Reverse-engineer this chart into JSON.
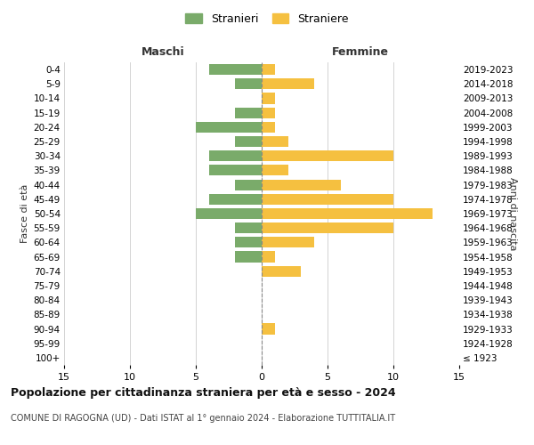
{
  "age_groups": [
    "100+",
    "95-99",
    "90-94",
    "85-89",
    "80-84",
    "75-79",
    "70-74",
    "65-69",
    "60-64",
    "55-59",
    "50-54",
    "45-49",
    "40-44",
    "35-39",
    "30-34",
    "25-29",
    "20-24",
    "15-19",
    "10-14",
    "5-9",
    "0-4"
  ],
  "birth_years": [
    "≤ 1923",
    "1924-1928",
    "1929-1933",
    "1934-1938",
    "1939-1943",
    "1944-1948",
    "1949-1953",
    "1954-1958",
    "1959-1963",
    "1964-1968",
    "1969-1973",
    "1974-1978",
    "1979-1983",
    "1984-1988",
    "1989-1993",
    "1994-1998",
    "1999-2003",
    "2004-2008",
    "2009-2013",
    "2014-2018",
    "2019-2023"
  ],
  "maschi": [
    0,
    0,
    0,
    0,
    0,
    0,
    0,
    2,
    2,
    2,
    5,
    4,
    2,
    4,
    4,
    2,
    5,
    2,
    0,
    2,
    4
  ],
  "femmine": [
    0,
    0,
    1,
    0,
    0,
    0,
    3,
    1,
    4,
    10,
    13,
    10,
    6,
    2,
    10,
    2,
    1,
    1,
    1,
    4,
    1
  ],
  "color_maschi": "#7aab6a",
  "color_femmine": "#f5c040",
  "title": "Popolazione per cittadinanza straniera per età e sesso - 2024",
  "subtitle": "COMUNE DI RAGOGNA (UD) - Dati ISTAT al 1° gennaio 2024 - Elaborazione TUTTITALIA.IT",
  "label_maschi": "Maschi",
  "label_femmine": "Femmine",
  "ylabel_left": "Fasce di età",
  "ylabel_right": "Anni di nascita",
  "legend_maschi": "Stranieri",
  "legend_femmine": "Straniere",
  "xlim": 15,
  "background_color": "#ffffff",
  "grid_color": "#cccccc"
}
